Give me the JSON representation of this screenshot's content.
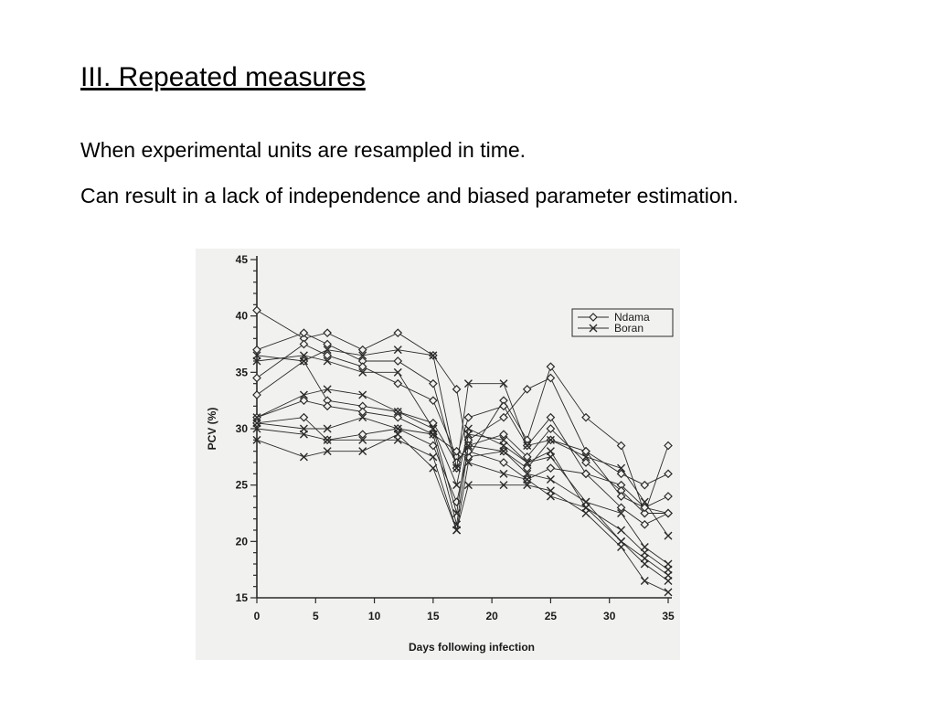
{
  "slide": {
    "title": "III. Repeated measures",
    "bullets": [
      "When experimental units are resampled in time.",
      "Can result in a lack of independence and biased parameter estimation."
    ]
  },
  "colors": {
    "line": "#2a2a2a",
    "background": "#f1f1ef"
  },
  "chart_data": {
    "type": "line",
    "xlabel": "Days following infection",
    "ylabel": "PCV (%)",
    "xlim": [
      0,
      35
    ],
    "ylim": [
      15,
      45
    ],
    "xticks": [
      0,
      5,
      10,
      15,
      20,
      25,
      30,
      35
    ],
    "yticks": [
      15,
      20,
      25,
      30,
      35,
      40,
      45
    ],
    "legend": {
      "position": "top-right",
      "entries": [
        {
          "name": "Ndama",
          "marker": "diamond"
        },
        {
          "name": "Boran",
          "marker": "x"
        }
      ]
    },
    "grid": false,
    "x": [
      0,
      4,
      6,
      9,
      12,
      15,
      17,
      18,
      21,
      23,
      25,
      28,
      31,
      33,
      35
    ],
    "series": [
      {
        "group": "Ndama",
        "marker": "diamond",
        "values": [
          40.5,
          38.0,
          38.5,
          37.0,
          38.5,
          36.5,
          33.5,
          27.5,
          32.5,
          29.0,
          35.5,
          31.0,
          28.5,
          22.5,
          28.5
        ]
      },
      {
        "group": "Ndama",
        "marker": "diamond",
        "values": [
          37.0,
          38.5,
          37.5,
          36.0,
          36.0,
          34.0,
          26.5,
          29.0,
          31.0,
          33.5,
          34.5,
          28.0,
          26.0,
          25.0,
          26.0
        ]
      },
      {
        "group": "Ndama",
        "marker": "diamond",
        "values": [
          34.5,
          37.5,
          36.5,
          35.5,
          34.0,
          32.5,
          27.5,
          31.0,
          32.0,
          28.5,
          31.0,
          26.0,
          25.0,
          23.0,
          24.0
        ]
      },
      {
        "group": "Ndama",
        "marker": "diamond",
        "values": [
          33.0,
          36.0,
          32.5,
          32.0,
          31.5,
          30.5,
          27.0,
          28.5,
          29.5,
          27.5,
          30.0,
          27.0,
          24.5,
          22.5,
          22.5
        ]
      },
      {
        "group": "Ndama",
        "marker": "diamond",
        "values": [
          31.0,
          32.5,
          32.0,
          31.5,
          31.0,
          29.5,
          28.0,
          27.5,
          28.0,
          26.5,
          29.0,
          28.0,
          24.0,
          23.0,
          22.5
        ]
      },
      {
        "group": "Ndama",
        "marker": "diamond",
        "values": [
          30.5,
          31.0,
          29.0,
          29.5,
          30.0,
          28.5,
          23.5,
          28.0,
          27.0,
          25.5,
          26.5,
          26.0,
          23.0,
          21.5,
          22.5
        ]
      },
      {
        "group": "Boran",
        "marker": "x",
        "values": [
          36.5,
          36.0,
          37.0,
          36.5,
          37.0,
          36.5,
          26.5,
          34.0,
          34.0,
          28.5,
          29.0,
          27.5,
          26.5,
          23.5,
          20.5
        ]
      },
      {
        "group": "Boran",
        "marker": "x",
        "values": [
          36.0,
          36.5,
          36.0,
          35.0,
          35.0,
          30.0,
          25.0,
          30.0,
          28.5,
          27.0,
          27.5,
          23.5,
          22.5,
          19.5,
          18.0
        ]
      },
      {
        "group": "Boran",
        "marker": "x",
        "values": [
          31.0,
          33.0,
          33.5,
          33.0,
          31.5,
          30.0,
          22.5,
          29.5,
          29.0,
          27.0,
          28.0,
          23.0,
          21.0,
          19.0,
          17.5
        ]
      },
      {
        "group": "Boran",
        "marker": "x",
        "values": [
          30.5,
          30.0,
          30.0,
          31.0,
          30.0,
          29.5,
          21.5,
          28.5,
          28.0,
          26.0,
          25.5,
          23.5,
          20.0,
          18.5,
          17.0
        ]
      },
      {
        "group": "Boran",
        "marker": "x",
        "values": [
          30.0,
          29.5,
          29.0,
          29.0,
          29.0,
          27.5,
          21.0,
          27.0,
          26.0,
          25.5,
          24.0,
          23.0,
          20.0,
          18.0,
          16.5
        ]
      },
      {
        "group": "Boran",
        "marker": "x",
        "values": [
          29.0,
          27.5,
          28.0,
          28.0,
          29.5,
          26.5,
          21.0,
          25.0,
          25.0,
          25.0,
          24.5,
          22.5,
          19.5,
          16.5,
          15.5
        ]
      }
    ]
  }
}
